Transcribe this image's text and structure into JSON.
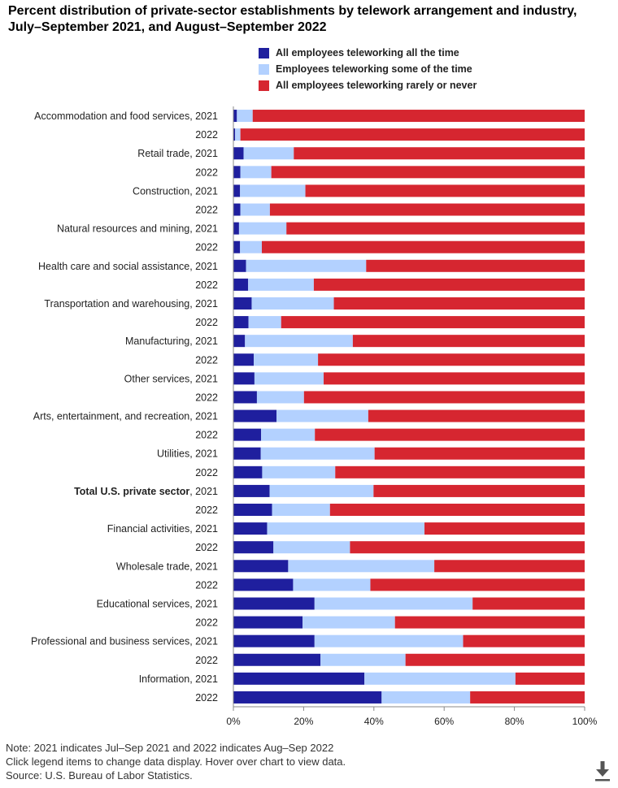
{
  "title": "Percent distribution of private-sector establishments by telework arrangement and industry, July–September 2021, and August–September 2022",
  "legend": [
    {
      "name": "All employees teleworking all the time",
      "color": "#1f1f9e"
    },
    {
      "name": "Employees teleworking some of the time",
      "color": "#b3d1ff"
    },
    {
      "name": "All employees teleworking rarely or never",
      "color": "#d62630"
    }
  ],
  "footer": {
    "note": "Note: 2021 indicates Jul–Sep 2021 and 2022 indicates Aug–Sep 2022",
    "instructions": "Click legend items to change data display. Hover over chart to view data.",
    "source": "Source: U.S. Bureau of Labor Statistics."
  },
  "download_icon": "download-icon",
  "chart_data": {
    "type": "bar",
    "orientation": "horizontal",
    "stacked": "percent",
    "categories": [
      {
        "industry": "Accommodation and food services",
        "year": "2021",
        "bold": false
      },
      {
        "industry": "",
        "year": "2022",
        "bold": false
      },
      {
        "industry": "Retail trade",
        "year": "2021",
        "bold": false
      },
      {
        "industry": "",
        "year": "2022",
        "bold": false
      },
      {
        "industry": "Construction",
        "year": "2021",
        "bold": false
      },
      {
        "industry": "",
        "year": "2022",
        "bold": false
      },
      {
        "industry": "Natural resources and mining",
        "year": "2021",
        "bold": false
      },
      {
        "industry": "",
        "year": "2022",
        "bold": false
      },
      {
        "industry": "Health care and social assistance",
        "year": "2021",
        "bold": false
      },
      {
        "industry": "",
        "year": "2022",
        "bold": false
      },
      {
        "industry": "Transportation and warehousing",
        "year": "2021",
        "bold": false
      },
      {
        "industry": "",
        "year": "2022",
        "bold": false
      },
      {
        "industry": "Manufacturing",
        "year": "2021",
        "bold": false
      },
      {
        "industry": "",
        "year": "2022",
        "bold": false
      },
      {
        "industry": "Other services",
        "year": "2021",
        "bold": false
      },
      {
        "industry": "",
        "year": "2022",
        "bold": false
      },
      {
        "industry": "Arts, entertainment, and recreation",
        "year": "2021",
        "bold": false
      },
      {
        "industry": "",
        "year": "2022",
        "bold": false
      },
      {
        "industry": "Utilities",
        "year": "2021",
        "bold": false
      },
      {
        "industry": "",
        "year": "2022",
        "bold": false
      },
      {
        "industry": "Total U.S. private sector",
        "year": "2021",
        "bold": true
      },
      {
        "industry": "",
        "year": "2022",
        "bold": false
      },
      {
        "industry": "Financial activities",
        "year": "2021",
        "bold": false
      },
      {
        "industry": "",
        "year": "2022",
        "bold": false
      },
      {
        "industry": "Wholesale trade",
        "year": "2021",
        "bold": false
      },
      {
        "industry": "",
        "year": "2022",
        "bold": false
      },
      {
        "industry": "Educational services",
        "year": "2021",
        "bold": false
      },
      {
        "industry": "",
        "year": "2022",
        "bold": false
      },
      {
        "industry": "Professional and business services",
        "year": "2021",
        "bold": false
      },
      {
        "industry": "",
        "year": "2022",
        "bold": false
      },
      {
        "industry": "Information",
        "year": "2021",
        "bold": false
      },
      {
        "industry": "",
        "year": "2022",
        "bold": false
      }
    ],
    "series": [
      {
        "name": "All employees teleworking all the time",
        "color": "#1f1f9e",
        "values": [
          1.0,
          0.5,
          2.9,
          2.0,
          1.9,
          2.0,
          1.6,
          1.9,
          3.6,
          4.2,
          5.2,
          4.3,
          3.3,
          5.8,
          6.0,
          6.7,
          12.3,
          7.9,
          7.8,
          8.2,
          10.3,
          11.0,
          9.6,
          11.4,
          15.6,
          17.0,
          23.1,
          19.7,
          23.1,
          24.8,
          37.3,
          42.2
        ]
      },
      {
        "name": "Employees teleworking some of the time",
        "color": "#b3d1ff",
        "values": [
          4.5,
          1.5,
          14.3,
          8.8,
          18.6,
          8.4,
          13.5,
          6.2,
          34.2,
          18.7,
          23.4,
          9.3,
          30.7,
          18.3,
          19.7,
          13.4,
          26.1,
          15.3,
          32.4,
          20.8,
          29.6,
          16.5,
          44.8,
          21.8,
          41.6,
          22.0,
          45.0,
          26.3,
          42.3,
          24.2,
          43.0,
          25.2
        ]
      },
      {
        "name": "All employees teleworking rarely or never",
        "color": "#d62630",
        "values": [
          94.5,
          98.0,
          82.8,
          89.2,
          79.5,
          89.6,
          84.9,
          91.9,
          62.2,
          77.1,
          71.4,
          86.4,
          66.0,
          75.9,
          74.3,
          79.9,
          61.6,
          76.8,
          59.8,
          71.0,
          60.1,
          72.5,
          45.6,
          66.8,
          42.8,
          61.0,
          31.9,
          54.0,
          34.6,
          51.0,
          19.7,
          32.6
        ]
      }
    ],
    "x_ticks": [
      "0%",
      "20%",
      "40%",
      "60%",
      "80%",
      "100%"
    ],
    "xlim": [
      0,
      100
    ],
    "legend_position": "top"
  }
}
